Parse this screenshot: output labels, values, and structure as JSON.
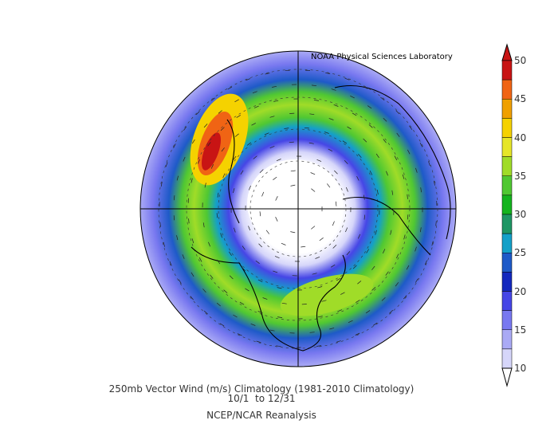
{
  "credit": "NOAA Physical Sciences Laboratory",
  "caption": {
    "line1": "250mb Vector Wind (m/s) Climatology (1981-2010 Climatology)",
    "line2": "10/1  to 12/31",
    "line3": "NCEP/NCAR Reanalysis"
  },
  "colorbar": {
    "labels": [
      "50",
      "45",
      "40",
      "35",
      "30",
      "25",
      "20",
      "15",
      "10"
    ],
    "colors": [
      "#c81414",
      "#f06414",
      "#f0a000",
      "#f5d200",
      "#e6e628",
      "#a0dc28",
      "#50c832",
      "#14b41e",
      "#1e9664",
      "#14a0c8",
      "#1e5ac8",
      "#1428be",
      "#4646e6",
      "#7878f0",
      "#aaaaf5",
      "#d6d6fa"
    ],
    "min_arrow": "#ffffff",
    "max_arrow": "#c81414"
  },
  "map": {
    "projection": "north-polar-stereographic",
    "jet_max_region": "North Pacific / Gulf of Alaska"
  }
}
